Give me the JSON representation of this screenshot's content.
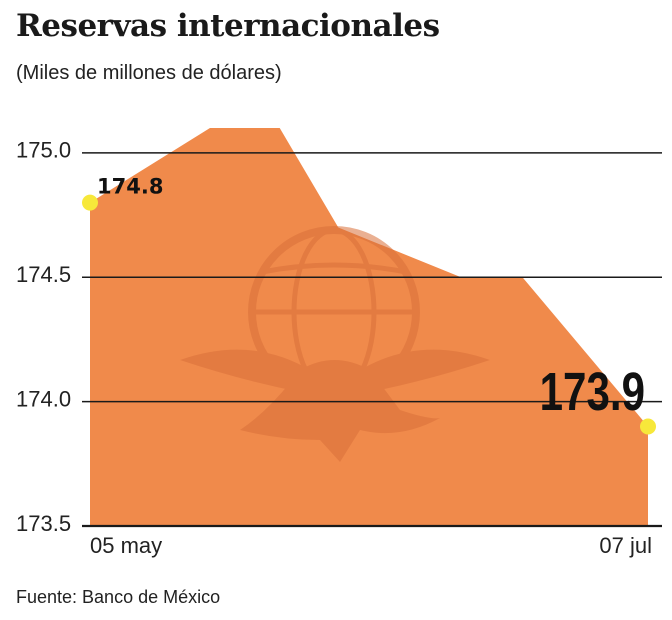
{
  "title": "Reservas internacionales",
  "subtitle": "(Miles de millones de dólares)",
  "source": "Fuente: Banco de México",
  "colors": {
    "area": "#f08a4b",
    "marker": "#f7e83a",
    "grid": "#1a1a1a",
    "watermark": "#d9703a"
  },
  "chart_data": {
    "type": "area",
    "title": "Reservas internacionales",
    "subtitle": "(Miles de millones de dólares)",
    "x_labels": [
      "05 may",
      "07 jul"
    ],
    "series": [
      {
        "values": [
          174.8,
          175.1,
          175.1,
          174.7,
          174.5,
          174.5,
          173.9
        ]
      }
    ],
    "y_ticks": [
      175.0,
      174.5,
      174.0,
      173.5
    ],
    "y_tick_labels": [
      "175.0",
      "174.5",
      "174.0",
      "173.5"
    ],
    "ylim": [
      173.5,
      175.1
    ],
    "grid": true,
    "data_labels": [
      {
        "point": "first",
        "text": "174.8"
      },
      {
        "point": "last",
        "text": "173.9"
      }
    ]
  }
}
